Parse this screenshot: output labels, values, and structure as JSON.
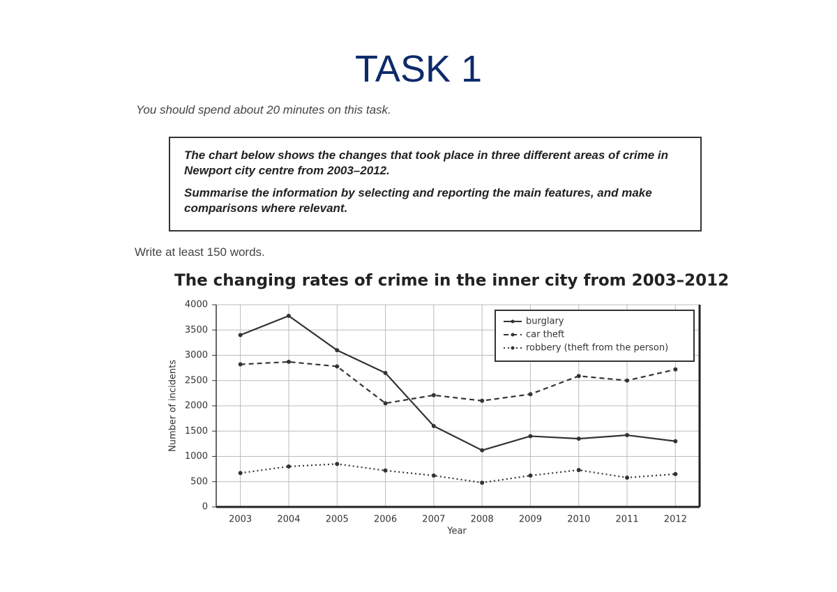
{
  "header": {
    "title": "TASK 1",
    "time_note": "You should spend about 20 minutes on this task."
  },
  "task_box": {
    "paragraphs": [
      "The chart below shows the changes that took place in three different areas of crime in Newport city centre from 2003–2012.",
      "Summarise the information by selecting and reporting the main features, and make comparisons where relevant."
    ]
  },
  "word_note": "Write at least 150 words.",
  "chart_data": {
    "type": "line",
    "title": "The changing rates of crime in the inner city from 2003–2012",
    "x_label": "Year",
    "y_label": "Number of incidents",
    "categories": [
      "2003",
      "2004",
      "2005",
      "2006",
      "2007",
      "2008",
      "2009",
      "2010",
      "2011",
      "2012"
    ],
    "series": [
      {
        "name": "burglary",
        "color": "#333333",
        "style": "solid",
        "values": [
          3400,
          3780,
          3100,
          2650,
          1600,
          1120,
          1400,
          1350,
          1420,
          1300
        ]
      },
      {
        "name": "car theft",
        "color": "#333333",
        "style": "dashed",
        "values": [
          2820,
          2870,
          2780,
          2050,
          2210,
          2100,
          2230,
          2590,
          2500,
          2720
        ]
      },
      {
        "name": "robbery (theft from the person)",
        "color": "#333333",
        "style": "dotted",
        "values": [
          670,
          800,
          850,
          720,
          620,
          480,
          620,
          730,
          580,
          650
        ]
      }
    ],
    "ylim": [
      0,
      4000
    ],
    "yticks": [
      0,
      500,
      1000,
      1500,
      2000,
      2500,
      3000,
      3500,
      4000
    ],
    "grid": true,
    "legend": "top-right"
  }
}
